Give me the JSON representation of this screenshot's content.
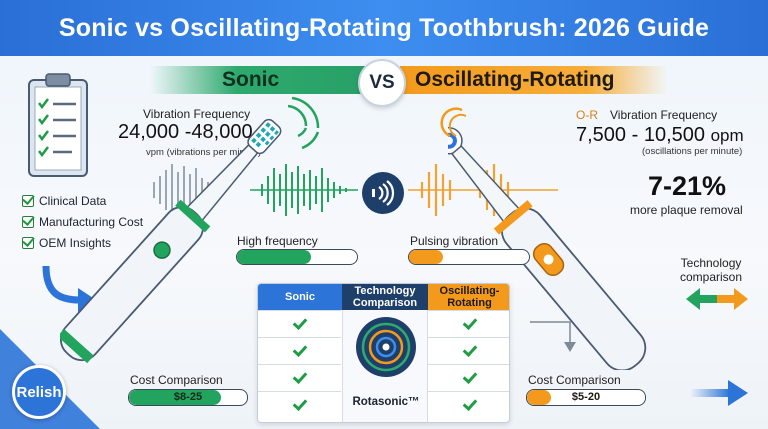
{
  "title": "Sonic vs Oscillating-Rotating Toothbrush: 2026 Guide",
  "vs_label": "VS",
  "sonic": {
    "label": "Sonic",
    "freq_title": "Vibration Frequency",
    "freq_value": "24,000 -48,000",
    "freq_unit": "vpm (vibrations per minute)",
    "bar_label": "High frequency",
    "bar_level": 0.62,
    "cost_title": "Cost Comparison",
    "cost_value": "$8-25",
    "cost_level": 0.78
  },
  "oscillating": {
    "label": "Oscillating-Rotating",
    "freq_prefix": "O-R",
    "freq_title": "Vibration Frequency",
    "freq_value": "7,500 - 10,500",
    "freq_value_unit": "opm",
    "freq_unit": "(oscillations per minute)",
    "plaque_value": "7-21%",
    "plaque_text": "more plaque removal",
    "bar_label": "Pulsing vibration",
    "bar_level": 0.28,
    "cost_title": "Cost Comparison",
    "cost_value": "$5-20",
    "cost_level": 0.2
  },
  "checklist": [
    "Clinical Data",
    "Manufacturing Cost",
    "OEM Insights"
  ],
  "tech_comparison_label": "Technology\ncomparison",
  "table": {
    "col_sonic": "Sonic",
    "col_middle": "Technology Comparison",
    "col_or": "Oscillating-Rotating",
    "center_label": "Rotasonic™",
    "rows": 4
  },
  "badge": "Relish",
  "colors": {
    "header": "#2f7ce3",
    "sonic_green": "#2eaa6e",
    "or_orange": "#f39a1c",
    "check_green": "#1f9d45"
  }
}
